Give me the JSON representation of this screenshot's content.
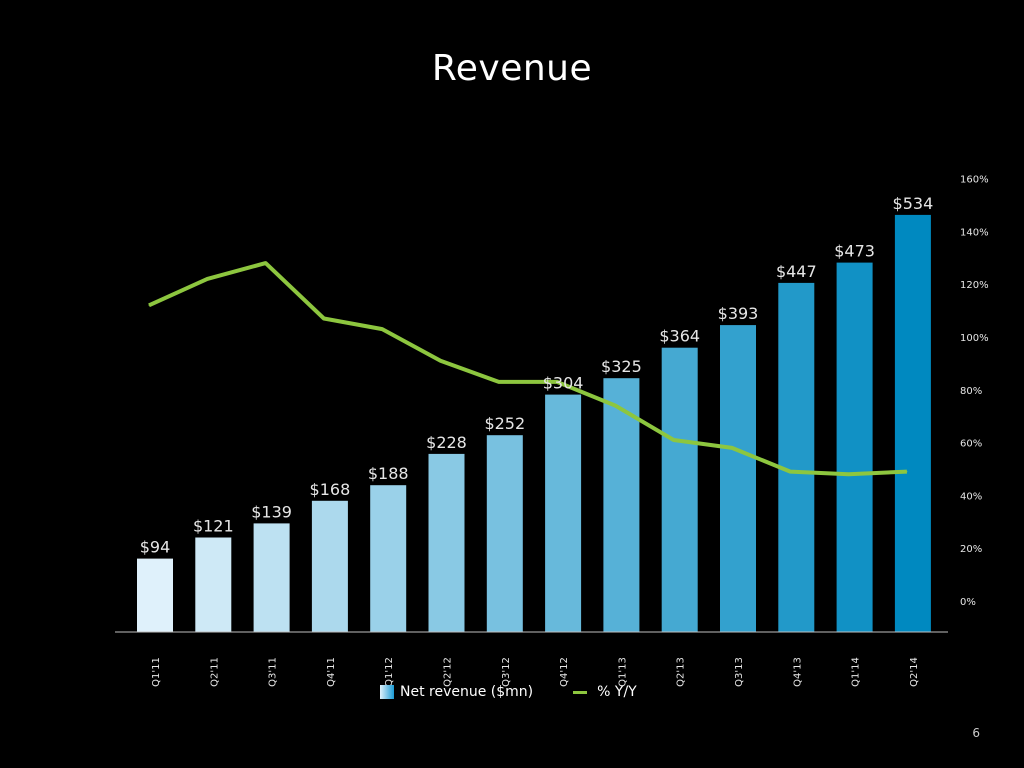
{
  "slide": {
    "title": "Revenue",
    "page_number": "6"
  },
  "legend": {
    "bar_label": "Net revenue ($mn)",
    "line_label": "% Y/Y"
  },
  "colors": {
    "background": "#000000",
    "line": "#8dc63f",
    "bar_start": "#dff1fb",
    "bar_end": "#0089c0",
    "axis": "#bfbfbf"
  },
  "chart_data": {
    "type": "bar",
    "title": "Revenue",
    "categories": [
      "Q1'11",
      "Q2'11",
      "Q3'11",
      "Q4'11",
      "Q1'12",
      "Q2'12",
      "Q3'12",
      "Q4'12",
      "Q1'13",
      "Q2'13",
      "Q3'13",
      "Q4'13",
      "Q1'14",
      "Q2'14"
    ],
    "series": [
      {
        "name": "Net revenue ($mn)",
        "type": "bar",
        "values": [
          94,
          121,
          139,
          168,
          188,
          228,
          252,
          304,
          325,
          364,
          393,
          447,
          473,
          534
        ],
        "labels": [
          "$94",
          "$121",
          "$139",
          "$168",
          "$188",
          "$228",
          "$252",
          "$304",
          "$325",
          "$364",
          "$393",
          "$447",
          "$473",
          "$534"
        ]
      },
      {
        "name": "% Y/Y",
        "type": "line",
        "axis": "right",
        "values": [
          112,
          122,
          128,
          107,
          103,
          91,
          83,
          83,
          74,
          61,
          58,
          49,
          48,
          49
        ]
      }
    ],
    "right_axis": {
      "ticks": [
        0,
        20,
        40,
        60,
        80,
        100,
        120,
        140,
        160
      ],
      "tick_labels": [
        "0%",
        "20%",
        "40%",
        "60%",
        "80%",
        "100%",
        "120%",
        "140%",
        "160%"
      ]
    },
    "legend_position": "bottom",
    "grid": false
  }
}
